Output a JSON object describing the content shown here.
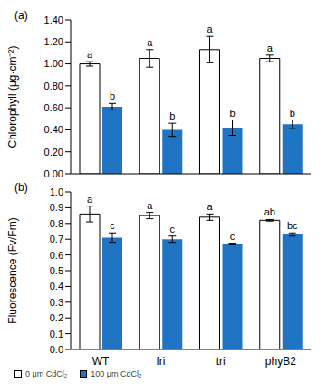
{
  "chart_data": [
    {
      "type": "bar",
      "title": "(a)",
      "y_label": "Chlorophyll (μg·cm⁻²)",
      "categories": [
        "WT",
        "fri",
        "tri",
        "phyB2"
      ],
      "series": [
        {
          "name": "0 μm CdCl₂",
          "color": "#ffffff",
          "values": [
            1.0,
            1.05,
            1.13,
            1.05
          ],
          "errors": [
            0.02,
            0.08,
            0.12,
            0.03
          ],
          "annotations": [
            "a",
            "a",
            "a",
            "a"
          ]
        },
        {
          "name": "100 μm CdCl₂",
          "color": "#1f74c4",
          "values": [
            0.61,
            0.4,
            0.42,
            0.45
          ],
          "errors": [
            0.03,
            0.06,
            0.07,
            0.04
          ],
          "annotations": [
            "b",
            "b",
            "b",
            "b"
          ]
        }
      ],
      "ylim": [
        0,
        1.4
      ],
      "yticks": [
        {
          "value": 0,
          "label": "0.00"
        },
        {
          "value": 0.2,
          "label": "0.20"
        },
        {
          "value": 0.4,
          "label": "0.40"
        },
        {
          "value": 0.6,
          "label": "0.60"
        },
        {
          "value": 0.8,
          "label": "0.80"
        },
        {
          "value": 1,
          "label": "1.00"
        },
        {
          "value": 1.2,
          "label": "1.20"
        },
        {
          "value": 1.4,
          "label": "1.40"
        }
      ],
      "tick_labels": "y"
    },
    {
      "type": "bar",
      "title": "(b)",
      "y_label": "Fluorescence (Fv/Fm)",
      "categories": [
        "WT",
        "fri",
        "tri",
        "phyB2"
      ],
      "series": [
        {
          "name": "0 μm CdCl₂",
          "color": "#ffffff",
          "values": [
            0.86,
            0.85,
            0.84,
            0.82
          ],
          "errors": [
            0.05,
            0.02,
            0.02,
            0.005
          ],
          "annotations": [
            "a",
            "a",
            "a",
            "ab"
          ]
        },
        {
          "name": "100 μm CdCl₂",
          "color": "#1f74c4",
          "values": [
            0.71,
            0.7,
            0.67,
            0.73
          ],
          "errors": [
            0.03,
            0.02,
            0.005,
            0.01
          ],
          "annotations": [
            "c",
            "c",
            "c",
            "bc"
          ]
        }
      ],
      "ylim": [
        0,
        1.0
      ],
      "yticks": [
        {
          "value": 0,
          "label": "0.0"
        },
        0.1,
        0.2,
        0.3,
        0.4,
        0.5,
        0.6,
        0.7,
        0.8,
        0.9,
        {
          "value": 1,
          "label": "1.0"
        }
      ],
      "legend": "bottom"
    }
  ]
}
